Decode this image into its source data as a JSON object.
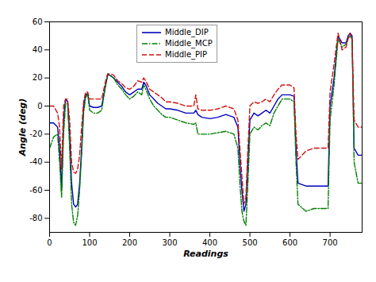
{
  "chart_data": {
    "type": "line",
    "x_label": "Readings",
    "y_label": "Angle (deg)",
    "xlim": [
      0,
      780
    ],
    "xticks": [
      0,
      100,
      200,
      300,
      400,
      500,
      600,
      700
    ],
    "ylim": [
      -90,
      60
    ],
    "yticks": [
      -80,
      -60,
      -40,
      -20,
      0,
      20,
      40,
      60
    ],
    "grid": false,
    "legend": "upper left",
    "x": [
      0,
      10,
      20,
      25,
      30,
      35,
      40,
      45,
      50,
      55,
      60,
      65,
      70,
      75,
      80,
      85,
      90,
      95,
      100,
      110,
      120,
      130,
      140,
      145,
      150,
      160,
      170,
      180,
      190,
      200,
      210,
      220,
      230,
      235,
      240,
      250,
      260,
      270,
      280,
      290,
      300,
      320,
      340,
      360,
      365,
      370,
      380,
      400,
      420,
      440,
      460,
      470,
      475,
      480,
      485,
      490,
      495,
      500,
      510,
      520,
      530,
      540,
      550,
      560,
      570,
      580,
      600,
      610,
      615,
      620,
      640,
      660,
      680,
      690,
      695,
      700,
      710,
      720,
      730,
      740,
      745,
      750,
      755,
      760,
      770,
      780
    ],
    "series": [
      {
        "name": "Middle_DIP",
        "color": "#0000c0",
        "line_style": "solid",
        "values": [
          -12,
          -12,
          -15,
          -30,
          -60,
          -10,
          5,
          3,
          -20,
          -55,
          -70,
          -72,
          -70,
          -55,
          -30,
          0,
          8,
          9,
          0,
          -1,
          -1,
          0,
          15,
          22,
          22,
          20,
          17,
          14,
          10,
          8,
          10,
          12,
          12,
          17,
          15,
          8,
          5,
          2,
          0,
          -2,
          -2,
          -3,
          -5,
          -5,
          -3,
          -6,
          -8,
          -9,
          -8,
          -6,
          -8,
          -15,
          -40,
          -60,
          -75,
          -70,
          -40,
          -10,
          -5,
          -7,
          -5,
          -3,
          -5,
          0,
          5,
          8,
          8,
          7,
          -30,
          -55,
          -57,
          -57,
          -57,
          -57,
          -57,
          0,
          20,
          50,
          45,
          45,
          50,
          52,
          50,
          -30,
          -35,
          -35
        ]
      },
      {
        "name": "Middle_MCP",
        "color": "#008000",
        "line_style": "dashdot",
        "values": [
          -30,
          -22,
          -20,
          -40,
          -65,
          -20,
          2,
          2,
          -30,
          -70,
          -83,
          -85,
          -78,
          -60,
          -35,
          -5,
          6,
          9,
          -3,
          -5,
          -5,
          -3,
          15,
          23,
          22,
          20,
          15,
          12,
          8,
          5,
          7,
          10,
          8,
          15,
          12,
          5,
          0,
          -3,
          -6,
          -8,
          -8,
          -10,
          -12,
          -13,
          -12,
          -20,
          -20,
          -20,
          -19,
          -18,
          -20,
          -30,
          -55,
          -75,
          -82,
          -85,
          -55,
          -20,
          -15,
          -17,
          -14,
          -12,
          -14,
          -5,
          0,
          5,
          5,
          3,
          -40,
          -70,
          -75,
          -73,
          -73,
          -73,
          -73,
          -10,
          15,
          48,
          42,
          44,
          48,
          50,
          48,
          -40,
          -55,
          -55
        ]
      },
      {
        "name": "Middle_PIP",
        "color": "#d01010",
        "line_style": "dashed",
        "values": [
          0,
          0,
          -5,
          -15,
          -45,
          0,
          5,
          5,
          -10,
          -40,
          -47,
          -48,
          -45,
          -35,
          -15,
          3,
          10,
          10,
          5,
          5,
          5,
          5,
          18,
          23,
          23,
          22,
          18,
          16,
          13,
          12,
          14,
          18,
          17,
          20,
          18,
          12,
          10,
          8,
          6,
          3,
          3,
          2,
          0,
          0,
          8,
          -2,
          -3,
          -3,
          -2,
          0,
          -2,
          -10,
          -30,
          -50,
          -70,
          -65,
          -30,
          0,
          3,
          2,
          3,
          5,
          3,
          8,
          12,
          15,
          15,
          13,
          -20,
          -38,
          -32,
          -30,
          -30,
          -30,
          -30,
          10,
          30,
          52,
          40,
          42,
          48,
          52,
          47,
          -10,
          -15,
          -15
        ]
      }
    ]
  }
}
